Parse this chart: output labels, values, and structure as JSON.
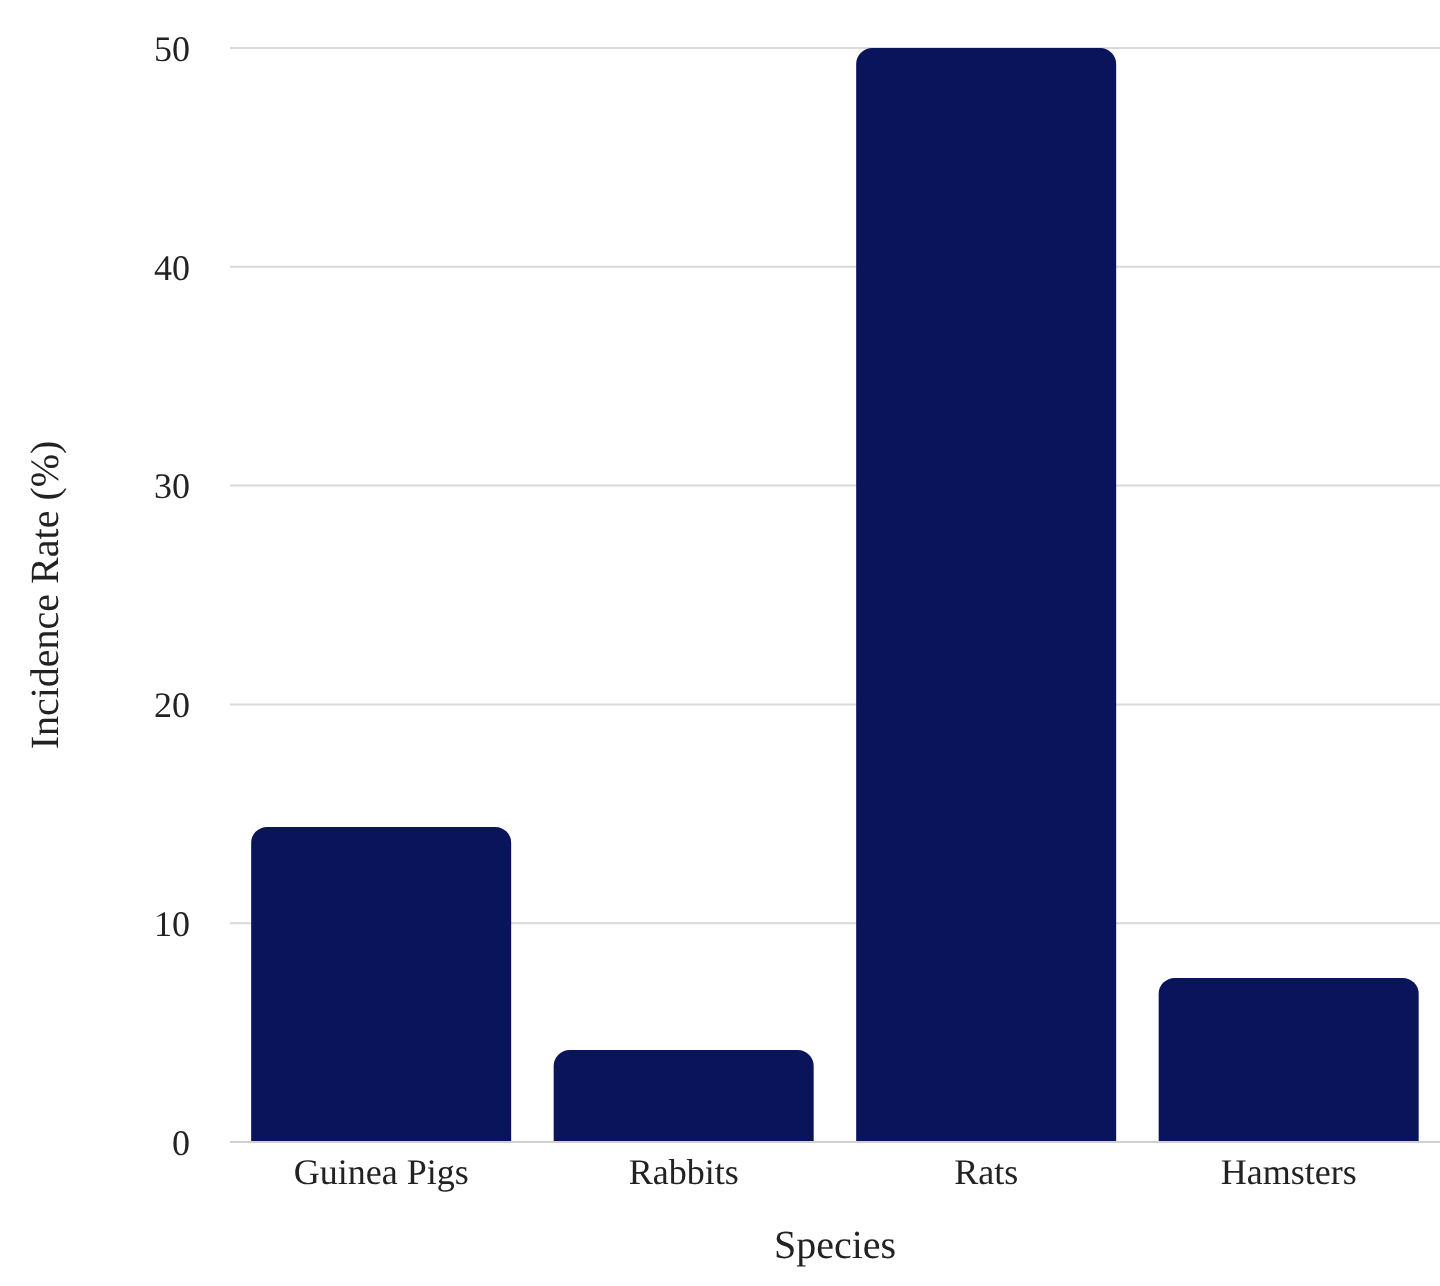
{
  "chart_data": {
    "type": "bar",
    "xlabel": "Species",
    "ylabel": "Incidence Rate (%)",
    "categories": [
      "Guinea Pigs",
      "Rabbits",
      "Rats",
      "Hamsters"
    ],
    "values": [
      14.4,
      4.2,
      50,
      7.5
    ],
    "color": "#0a145a",
    "ylim": [
      0,
      50
    ],
    "yticks": [
      0,
      10,
      20,
      30,
      40,
      50
    ],
    "grid": "y"
  }
}
